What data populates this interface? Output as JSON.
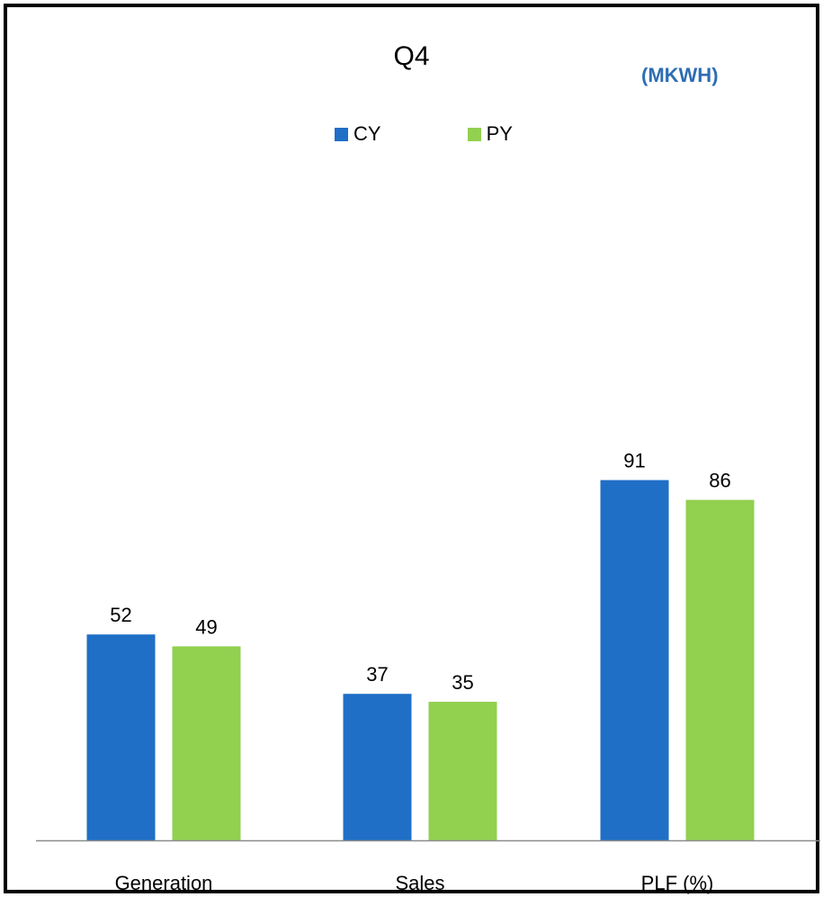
{
  "chart_data": {
    "type": "bar",
    "title": "Q4",
    "subtitle": "(MKWH)",
    "categories": [
      "Generation",
      "Sales",
      "PLF (%)"
    ],
    "series": [
      {
        "name": "CY",
        "values": [
          52,
          37,
          91
        ],
        "color": "#1F6FC6"
      },
      {
        "name": "PY",
        "values": [
          49,
          35,
          86
        ],
        "color": "#92D050"
      }
    ],
    "ylim": [
      0,
      100
    ],
    "grid": false,
    "legend": "top-center",
    "data_labels": true
  }
}
